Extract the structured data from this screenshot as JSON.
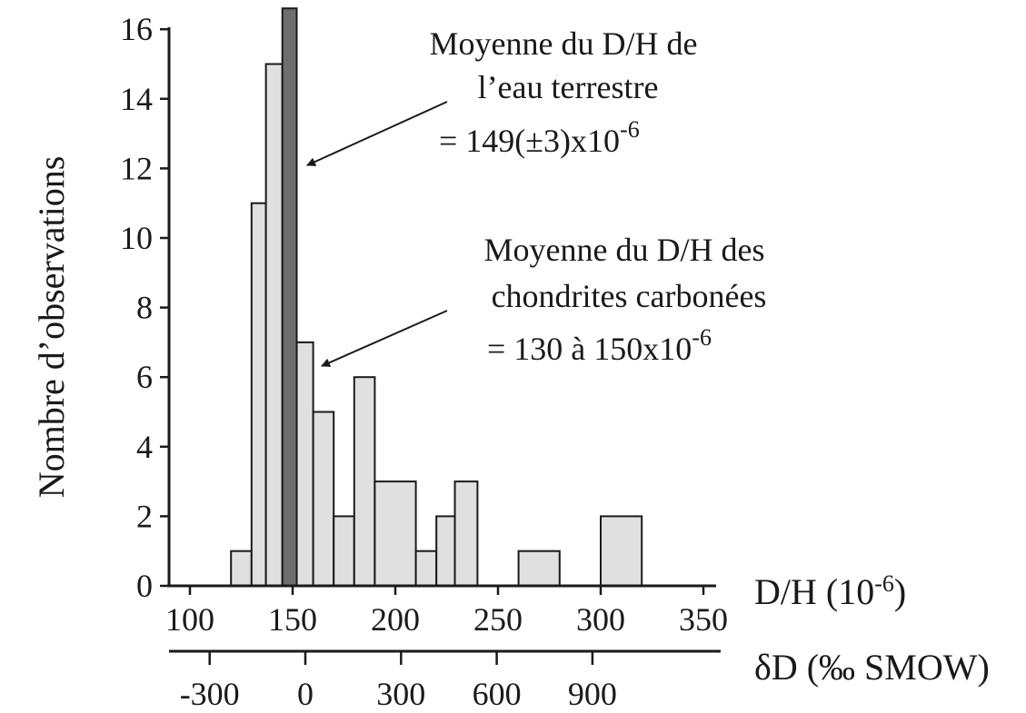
{
  "chart_data": {
    "type": "bar",
    "ylabel": "Nombre d’observations",
    "xlabel": "D/H (10",
    "xlabel_exp": "-6",
    "xlabel_close": ")",
    "x2label": "δD (‰ SMOW)",
    "xlim": [
      100,
      350
    ],
    "ylim": [
      0,
      16
    ],
    "x_ticks": [
      "100",
      "150",
      "200",
      "250",
      "300",
      "350"
    ],
    "y_ticks": [
      "0",
      "2",
      "4",
      "6",
      "8",
      "10",
      "12",
      "14",
      "16"
    ],
    "x2_ticks": [
      "-300",
      "0",
      "300",
      "600",
      "900"
    ],
    "bins": [
      {
        "x0": 120,
        "x1": 130,
        "count": 1
      },
      {
        "x0": 130,
        "x1": 137,
        "count": 11
      },
      {
        "x0": 137,
        "x1": 145,
        "count": 15
      },
      {
        "x0": 152,
        "x1": 160,
        "count": 7
      },
      {
        "x0": 160,
        "x1": 170,
        "count": 5
      },
      {
        "x0": 170,
        "x1": 180,
        "count": 2
      },
      {
        "x0": 180,
        "x1": 190,
        "count": 6
      },
      {
        "x0": 190,
        "x1": 210,
        "count": 3
      },
      {
        "x0": 210,
        "x1": 220,
        "count": 1
      },
      {
        "x0": 220,
        "x1": 229,
        "count": 2
      },
      {
        "x0": 229,
        "x1": 240,
        "count": 3
      },
      {
        "x0": 260,
        "x1": 280,
        "count": 1
      },
      {
        "x0": 300,
        "x1": 320,
        "count": 2
      }
    ],
    "highlight": {
      "x0": 145,
      "x1": 152,
      "count": 16.6
    },
    "colors": {
      "bar": "#dfe0df",
      "highlight": "#6e6e6e",
      "ink": "#1a1a1a"
    },
    "annotations": [
      {
        "lines": [
          "Moyenne du D/H de",
          "l’eau terrestre",
          "= 149(±3)x10"
        ],
        "exp": "-6",
        "points_to": 152
      },
      {
        "lines": [
          "Moyenne du D/H des",
          "chondrites carbonées",
          "= 130 à 150x10"
        ],
        "exp": "-6",
        "points_to": 160
      }
    ]
  }
}
